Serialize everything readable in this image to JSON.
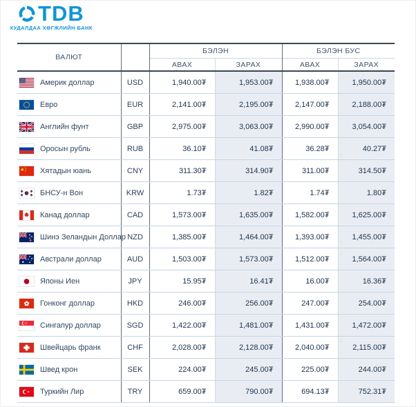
{
  "brand": {
    "name": "TDB",
    "tagline": "ХУДАЛДАА ХӨГЖЛИЙН БАНК",
    "accent_color": "#1095d5"
  },
  "table": {
    "headers": {
      "currency": "ВАЛЮТ",
      "cash": "БЭЛЭН",
      "non_cash": "БЭЛЭН БУС",
      "buy": "АВАХ",
      "sell": "ЗАРАХ"
    },
    "rows": [
      {
        "icon": "flag-usa",
        "name": "Америк доллар",
        "code": "USD",
        "cash_buy": "1,940.00₮",
        "cash_sell": "1,953.00₮",
        "noncash_buy": "1,938.00₮",
        "noncash_sell": "1,950.00₮"
      },
      {
        "icon": "flag-eu",
        "name": "Евро",
        "code": "EUR",
        "cash_buy": "2,141.00₮",
        "cash_sell": "2,195.00₮",
        "noncash_buy": "2,147.00₮",
        "noncash_sell": "2,188.00₮"
      },
      {
        "icon": "flag-uk",
        "name": "Английн фунт",
        "code": "GBP",
        "cash_buy": "2,975.00₮",
        "cash_sell": "3,063.00₮",
        "noncash_buy": "2,990.00₮",
        "noncash_sell": "3,054.00₮"
      },
      {
        "icon": "flag-russia",
        "name": "Оросын рубль",
        "code": "RUB",
        "cash_buy": "36.10₮",
        "cash_sell": "41.08₮",
        "noncash_buy": "36.28₮",
        "noncash_sell": "40.27₮"
      },
      {
        "icon": "flag-china",
        "name": "Хятадын юань",
        "code": "CNY",
        "cash_buy": "311.30₮",
        "cash_sell": "314.90₮",
        "noncash_buy": "311.00₮",
        "noncash_sell": "314.50₮"
      },
      {
        "icon": "flag-south-korea",
        "name": "БНСУ-н Вон",
        "code": "KRW",
        "cash_buy": "1.73₮",
        "cash_sell": "1.82₮",
        "noncash_buy": "1.74₮",
        "noncash_sell": "1.80₮"
      },
      {
        "icon": "flag-canada",
        "name": "Канад доллар",
        "code": "CAD",
        "cash_buy": "1,573.00₮",
        "cash_sell": "1,635.00₮",
        "noncash_buy": "1,582.00₮",
        "noncash_sell": "1,625.00₮"
      },
      {
        "icon": "flag-new-zealand",
        "name": "Шинэ Зеландын Доллар",
        "code": "NZD",
        "cash_buy": "1,385.00₮",
        "cash_sell": "1,464.00₮",
        "noncash_buy": "1,393.00₮",
        "noncash_sell": "1,455.00₮"
      },
      {
        "icon": "flag-australia",
        "name": "Австрали доллар",
        "code": "AUD",
        "cash_buy": "1,503.00₮",
        "cash_sell": "1,573.00₮",
        "noncash_buy": "1,512.00₮",
        "noncash_sell": "1,564.00₮"
      },
      {
        "icon": "flag-japan",
        "name": "Японы Иен",
        "code": "JPY",
        "cash_buy": "15.95₮",
        "cash_sell": "16.41₮",
        "noncash_buy": "16.00₮",
        "noncash_sell": "16.36₮"
      },
      {
        "icon": "flag-hong-kong",
        "name": "Гонконг доллар",
        "code": "HKD",
        "cash_buy": "246.00₮",
        "cash_sell": "256.00₮",
        "noncash_buy": "247.00₮",
        "noncash_sell": "254.00₮"
      },
      {
        "icon": "flag-singapore",
        "name": "Сингапур доллар",
        "code": "SGD",
        "cash_buy": "1,422.00₮",
        "cash_sell": "1,481.00₮",
        "noncash_buy": "1,431.00₮",
        "noncash_sell": "1,472.00₮"
      },
      {
        "icon": "flag-switzerland",
        "name": "Швейцарь франк",
        "code": "CHF",
        "cash_buy": "2,028.00₮",
        "cash_sell": "2,128.00₮",
        "noncash_buy": "2,040.00₮",
        "noncash_sell": "2,115.00₮"
      },
      {
        "icon": "flag-sweden",
        "name": "Швед крон",
        "code": "SEK",
        "cash_buy": "224.00₮",
        "cash_sell": "245.00₮",
        "noncash_buy": "225.00₮",
        "noncash_sell": "244.00₮"
      },
      {
        "icon": "flag-turkey",
        "name": "Туркийн Лир",
        "code": "TRY",
        "cash_buy": "659.00₮",
        "cash_sell": "790.00₮",
        "noncash_buy": "694.13₮",
        "noncash_sell": "752.31₮"
      }
    ]
  },
  "colors": {
    "accent_blue": "#1095d5",
    "header_border": "#3a4554",
    "row_border": "#c6d3e4",
    "sell_column_bg": "#e9edf3"
  }
}
